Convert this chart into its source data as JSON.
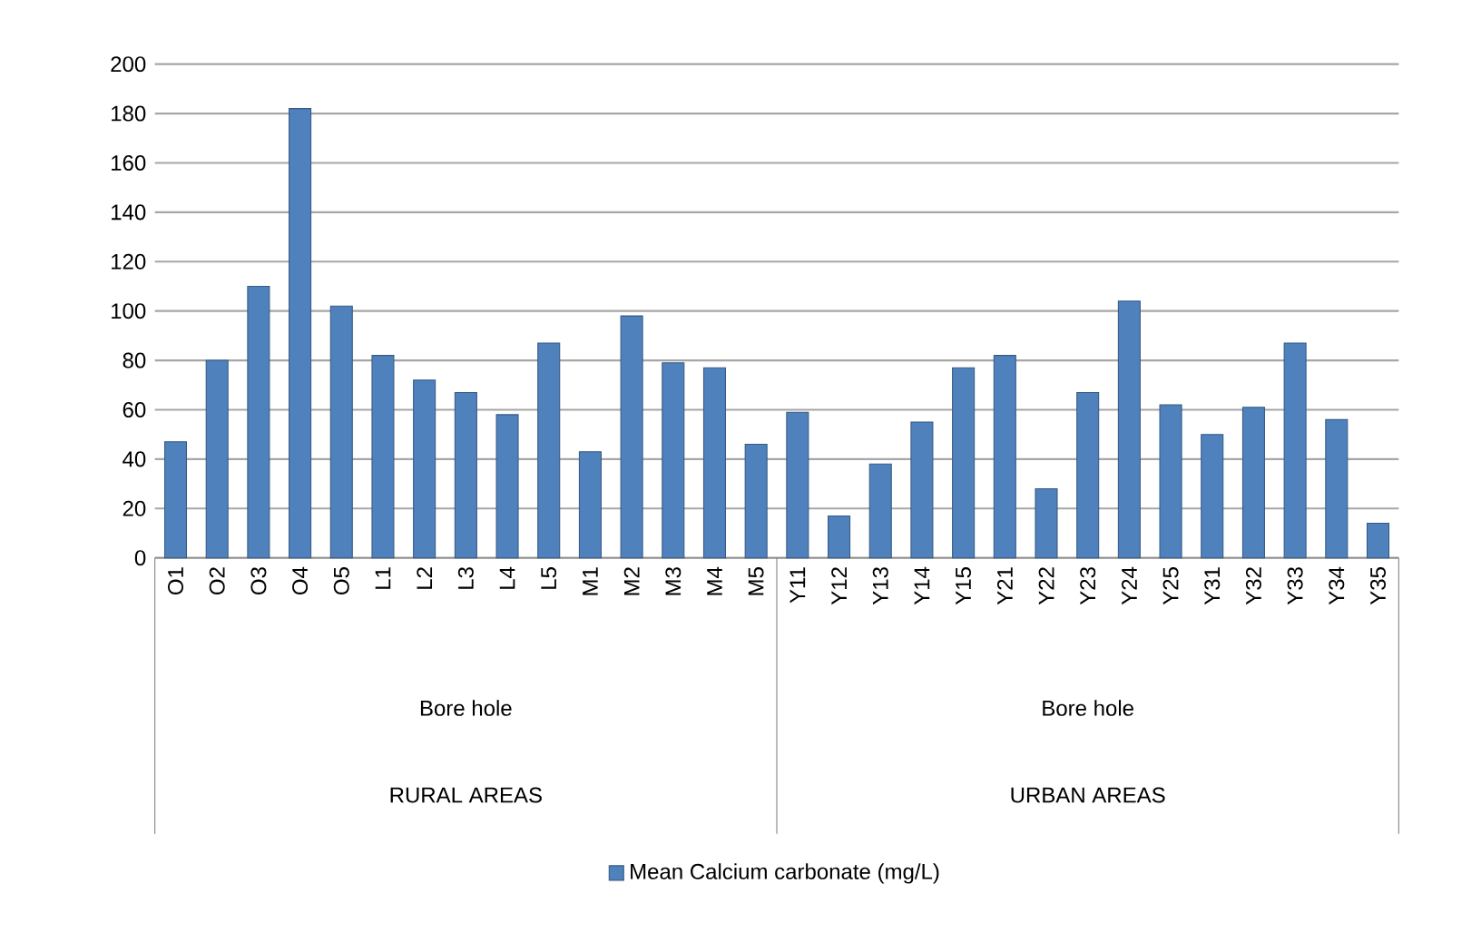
{
  "chart_data": {
    "type": "bar",
    "categories": [
      "O1",
      "O2",
      "O3",
      "O4",
      "O5",
      "L1",
      "L2",
      "L3",
      "L4",
      "L5",
      "M1",
      "M2",
      "M3",
      "M4",
      "M5",
      "Y11",
      "Y12",
      "Y13",
      "Y14",
      "Y15",
      "Y21",
      "Y22",
      "Y23",
      "Y24",
      "Y25",
      "Y31",
      "Y32",
      "Y33",
      "Y34",
      "Y35"
    ],
    "series": [
      {
        "name": "Mean Calcium carbonate (mg/L)",
        "color": "#4f81bd",
        "values": [
          47,
          80,
          110,
          182,
          102,
          82,
          72,
          67,
          58,
          87,
          43,
          98,
          79,
          77,
          46,
          59,
          17,
          38,
          55,
          77,
          82,
          28,
          67,
          104,
          62,
          50,
          61,
          87,
          56,
          14
        ]
      }
    ],
    "annotations": [
      "Bore hole",
      "RURAL AREAS",
      "Bore hole",
      "URBAN AREAS"
    ],
    "ylim": [
      0,
      200
    ],
    "yticks": [
      0,
      20,
      40,
      60,
      80,
      100,
      120,
      140,
      160,
      180,
      200
    ],
    "grid": "y",
    "legend": "bottom"
  }
}
